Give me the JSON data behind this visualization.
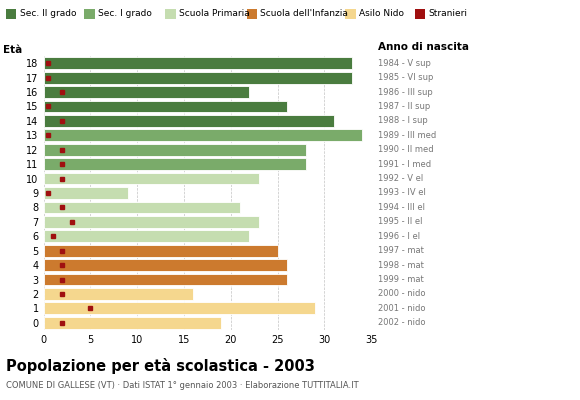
{
  "ages": [
    18,
    17,
    16,
    15,
    14,
    13,
    12,
    11,
    10,
    9,
    8,
    7,
    6,
    5,
    4,
    3,
    2,
    1,
    0
  ],
  "anno": [
    "1984 - V sup",
    "1985 - VI sup",
    "1986 - III sup",
    "1987 - II sup",
    "1988 - I sup",
    "1989 - III med",
    "1990 - II med",
    "1991 - I med",
    "1992 - V el",
    "1993 - IV el",
    "1994 - III el",
    "1995 - II el",
    "1996 - I el",
    "1997 - mat",
    "1998 - mat",
    "1999 - mat",
    "2000 - nido",
    "2001 - nido",
    "2002 - nido"
  ],
  "values": [
    33,
    33,
    22,
    26,
    31,
    34,
    28,
    28,
    23,
    9,
    21,
    23,
    22,
    25,
    26,
    26,
    16,
    29,
    19
  ],
  "stranieri": [
    0.5,
    0.5,
    2.0,
    0.5,
    2.0,
    0.5,
    2.0,
    2.0,
    2.0,
    0.5,
    2.0,
    3.0,
    1.0,
    2.0,
    2.0,
    2.0,
    2.0,
    5.0,
    2.0
  ],
  "bar_colors": [
    "#4a7c3f",
    "#4a7c3f",
    "#4a7c3f",
    "#4a7c3f",
    "#4a7c3f",
    "#7aab6a",
    "#7aab6a",
    "#7aab6a",
    "#c5ddb0",
    "#c5ddb0",
    "#c5ddb0",
    "#c5ddb0",
    "#c5ddb0",
    "#cc7a2e",
    "#cc7a2e",
    "#cc7a2e",
    "#f5d78e",
    "#f5d78e",
    "#f5d78e"
  ],
  "legend_colors": [
    "#4a7c3f",
    "#7aab6a",
    "#c5ddb0",
    "#cc7a2e",
    "#f5d78e",
    "#a01010"
  ],
  "legend_labels": [
    "Sec. II grado",
    "Sec. I grado",
    "Scuola Primaria",
    "Scuola dell'Infanzia",
    "Asilo Nido",
    "Stranieri"
  ],
  "title": "Popolazione per età scolastica - 2003",
  "subtitle": "COMUNE DI GALLESE (VT) · Dati ISTAT 1° gennaio 2003 · Elaborazione TUTTITALIA.IT",
  "eta_label": "Età",
  "anno_label": "Anno di nascita",
  "xlim": [
    0,
    35
  ],
  "xticks": [
    0,
    5,
    10,
    15,
    20,
    25,
    30,
    35
  ],
  "background_color": "#ffffff",
  "grid_color": "#aaaaaa"
}
